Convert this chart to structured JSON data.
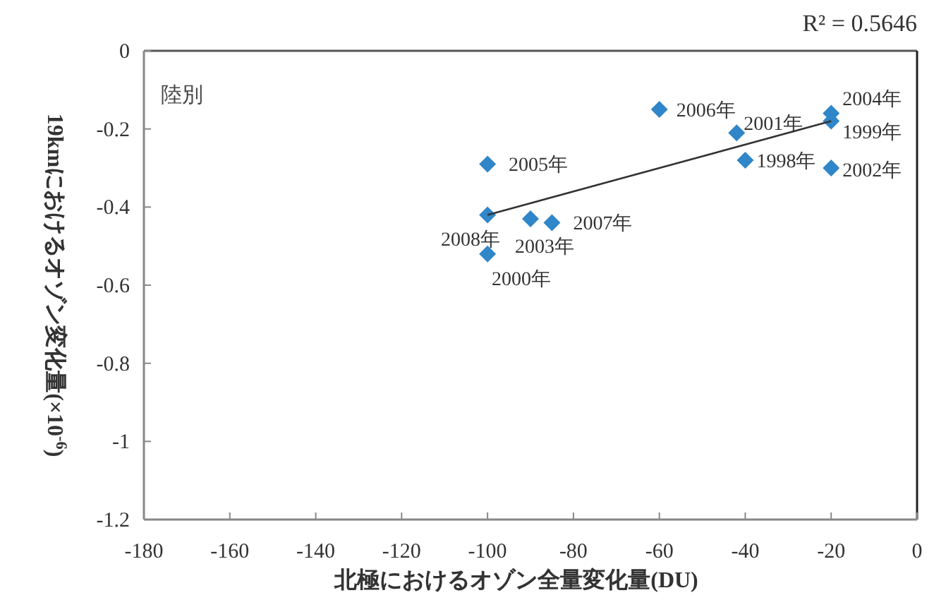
{
  "chart_data": {
    "type": "scatter",
    "xlabel": "北極におけるオゾン全量変化量(DU)",
    "ylabel": "19kmにおけるオゾン変化量(×10$^{-6}$)",
    "xlim": [
      -180,
      0
    ],
    "ylim": [
      -1.2,
      0
    ],
    "xticks": [
      -180,
      -160,
      -140,
      -120,
      -100,
      -80,
      -60,
      -40,
      -20,
      0
    ],
    "yticks": [
      0,
      -0.2,
      -0.4,
      -0.6,
      -0.8,
      -1,
      -1.2
    ],
    "marker": "diamond",
    "grid": false,
    "series": [
      {
        "color": "#2f86c8",
        "x": [
          -40,
          -20,
          -100,
          -42,
          -20,
          -90,
          -20,
          -100,
          -60,
          -85,
          -100
        ],
        "values": [
          -0.28,
          -0.18,
          -0.52,
          -0.21,
          -0.3,
          -0.43,
          -0.16,
          -0.29,
          -0.15,
          -0.44,
          -0.42
        ]
      },
      {
        "type": "line",
        "color": "#333333",
        "marker": "none",
        "x": [
          -100,
          -20
        ],
        "values": [
          -0.42,
          -0.18
        ]
      }
    ],
    "annotations": [
      "R² = 0.5646",
      "陸別",
      {
        "text": "1998年",
        "x": -40,
        "y": -0.28
      },
      {
        "text": "1999年",
        "x": -20,
        "y": -0.18
      },
      {
        "text": "2000年",
        "x": -100,
        "y": -0.52
      },
      {
        "text": "2001年",
        "x": -42,
        "y": -0.21
      },
      {
        "text": "2002年",
        "x": -20,
        "y": -0.3
      },
      {
        "text": "2003年",
        "x": -90,
        "y": -0.43
      },
      {
        "text": "2004年",
        "x": -20,
        "y": -0.16
      },
      {
        "text": "2005年",
        "x": -100,
        "y": -0.29
      },
      {
        "text": "2006年",
        "x": -60,
        "y": -0.15
      },
      {
        "text": "2007年",
        "x": -85,
        "y": -0.44
      },
      {
        "text": "2008年",
        "x": -100,
        "y": -0.42
      }
    ]
  }
}
